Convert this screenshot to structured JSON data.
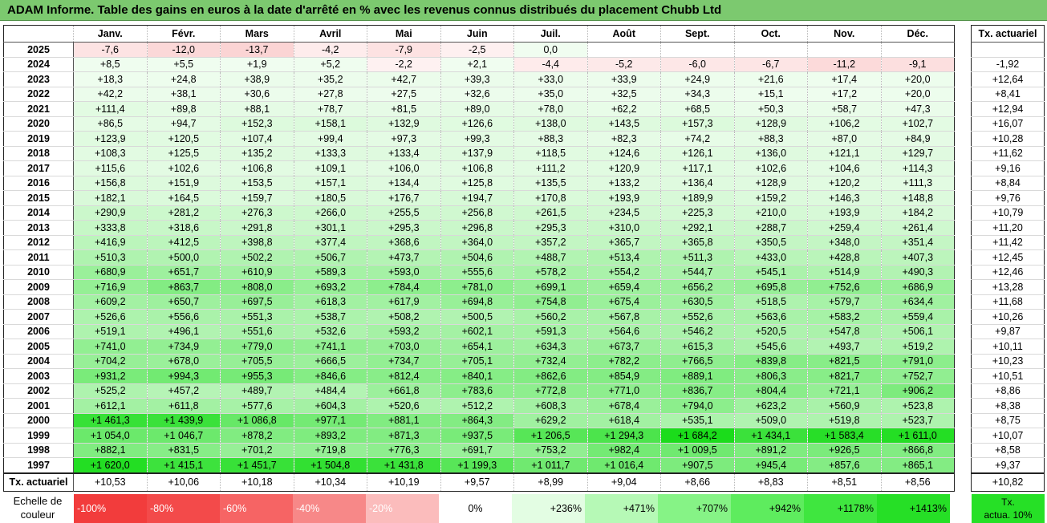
{
  "title": "ADAM Informe. Table des gains en euros à la date d'arrêté en % avec les revenus connus distribués du placement Chubb Ltd",
  "months": [
    "Janv.",
    "Févr.",
    "Mars",
    "Avril",
    "Mai",
    "Juin",
    "Juil.",
    "Août",
    "Sept.",
    "Oct.",
    "Nov.",
    "Déc."
  ],
  "side_header": "Tx. actuariel",
  "rows": [
    {
      "year": "2025",
      "cells": [
        "-7,6",
        "-12,0",
        "-13,7",
        "-4,2",
        "-7,9",
        "-2,5",
        "0,0",
        "",
        "",
        "",
        "",
        ""
      ],
      "rate": ""
    },
    {
      "year": "2024",
      "cells": [
        "+8,5",
        "+5,5",
        "+1,9",
        "+5,2",
        "-2,2",
        "+2,1",
        "-4,4",
        "-5,2",
        "-6,0",
        "-6,7",
        "-11,2",
        "-9,1"
      ],
      "rate": "-1,92"
    },
    {
      "year": "2023",
      "cells": [
        "+18,3",
        "+24,8",
        "+38,9",
        "+35,2",
        "+42,7",
        "+39,3",
        "+33,0",
        "+33,9",
        "+24,9",
        "+21,6",
        "+17,4",
        "+20,0"
      ],
      "rate": "+12,64"
    },
    {
      "year": "2022",
      "cells": [
        "+42,2",
        "+38,1",
        "+30,6",
        "+27,8",
        "+27,5",
        "+32,6",
        "+35,0",
        "+32,5",
        "+34,3",
        "+15,1",
        "+17,2",
        "+20,0"
      ],
      "rate": "+8,41"
    },
    {
      "year": "2021",
      "cells": [
        "+111,4",
        "+89,8",
        "+88,1",
        "+78,7",
        "+81,5",
        "+89,0",
        "+78,0",
        "+62,2",
        "+68,5",
        "+50,3",
        "+58,7",
        "+47,3"
      ],
      "rate": "+12,94"
    },
    {
      "year": "2020",
      "cells": [
        "+86,5",
        "+94,7",
        "+152,3",
        "+158,1",
        "+132,9",
        "+126,6",
        "+138,0",
        "+143,5",
        "+157,3",
        "+128,9",
        "+106,2",
        "+102,7"
      ],
      "rate": "+16,07"
    },
    {
      "year": "2019",
      "cells": [
        "+123,9",
        "+120,5",
        "+107,4",
        "+99,4",
        "+97,3",
        "+99,3",
        "+88,3",
        "+82,3",
        "+74,2",
        "+88,3",
        "+87,0",
        "+84,9"
      ],
      "rate": "+10,28"
    },
    {
      "year": "2018",
      "cells": [
        "+108,3",
        "+125,5",
        "+135,2",
        "+133,3",
        "+133,4",
        "+137,9",
        "+118,5",
        "+124,6",
        "+126,1",
        "+136,0",
        "+121,1",
        "+129,7"
      ],
      "rate": "+11,62"
    },
    {
      "year": "2017",
      "cells": [
        "+115,6",
        "+102,6",
        "+106,8",
        "+109,1",
        "+106,0",
        "+106,8",
        "+111,2",
        "+120,9",
        "+117,1",
        "+102,6",
        "+104,6",
        "+114,3"
      ],
      "rate": "+9,16"
    },
    {
      "year": "2016",
      "cells": [
        "+156,8",
        "+151,9",
        "+153,5",
        "+157,1",
        "+134,4",
        "+125,8",
        "+135,5",
        "+133,2",
        "+136,4",
        "+128,9",
        "+120,2",
        "+111,3"
      ],
      "rate": "+8,84"
    },
    {
      "year": "2015",
      "cells": [
        "+182,1",
        "+164,5",
        "+159,7",
        "+180,5",
        "+176,7",
        "+194,7",
        "+170,8",
        "+193,9",
        "+189,9",
        "+159,2",
        "+146,3",
        "+148,8"
      ],
      "rate": "+9,76"
    },
    {
      "year": "2014",
      "cells": [
        "+290,9",
        "+281,2",
        "+276,3",
        "+266,0",
        "+255,5",
        "+256,8",
        "+261,5",
        "+234,5",
        "+225,3",
        "+210,0",
        "+193,9",
        "+184,2"
      ],
      "rate": "+10,79"
    },
    {
      "year": "2013",
      "cells": [
        "+333,8",
        "+318,6",
        "+291,8",
        "+301,1",
        "+295,3",
        "+296,8",
        "+295,3",
        "+310,0",
        "+292,1",
        "+288,7",
        "+259,4",
        "+261,4"
      ],
      "rate": "+11,20"
    },
    {
      "year": "2012",
      "cells": [
        "+416,9",
        "+412,5",
        "+398,8",
        "+377,4",
        "+368,6",
        "+364,0",
        "+357,2",
        "+365,7",
        "+365,8",
        "+350,5",
        "+348,0",
        "+351,4"
      ],
      "rate": "+11,42"
    },
    {
      "year": "2011",
      "cells": [
        "+510,3",
        "+500,0",
        "+502,2",
        "+506,7",
        "+473,7",
        "+504,6",
        "+488,7",
        "+513,4",
        "+511,3",
        "+433,0",
        "+428,8",
        "+407,3"
      ],
      "rate": "+12,45"
    },
    {
      "year": "2010",
      "cells": [
        "+680,9",
        "+651,7",
        "+610,9",
        "+589,3",
        "+593,0",
        "+555,6",
        "+578,2",
        "+554,2",
        "+544,7",
        "+545,1",
        "+514,9",
        "+490,3"
      ],
      "rate": "+12,46"
    },
    {
      "year": "2009",
      "cells": [
        "+716,9",
        "+863,7",
        "+808,0",
        "+693,2",
        "+784,4",
        "+781,0",
        "+699,1",
        "+659,4",
        "+656,2",
        "+695,8",
        "+752,6",
        "+686,9"
      ],
      "rate": "+13,28"
    },
    {
      "year": "2008",
      "cells": [
        "+609,2",
        "+650,7",
        "+697,5",
        "+618,3",
        "+617,9",
        "+694,8",
        "+754,8",
        "+675,4",
        "+630,5",
        "+518,5",
        "+579,7",
        "+634,4"
      ],
      "rate": "+11,68"
    },
    {
      "year": "2007",
      "cells": [
        "+526,6",
        "+556,6",
        "+551,3",
        "+538,7",
        "+508,2",
        "+500,5",
        "+560,2",
        "+567,8",
        "+552,6",
        "+563,6",
        "+583,2",
        "+559,4"
      ],
      "rate": "+10,26"
    },
    {
      "year": "2006",
      "cells": [
        "+519,1",
        "+496,1",
        "+551,6",
        "+532,6",
        "+593,2",
        "+602,1",
        "+591,3",
        "+564,6",
        "+546,2",
        "+520,5",
        "+547,8",
        "+506,1"
      ],
      "rate": "+9,87"
    },
    {
      "year": "2005",
      "cells": [
        "+741,0",
        "+734,9",
        "+779,0",
        "+741,1",
        "+703,0",
        "+654,1",
        "+634,3",
        "+673,7",
        "+615,3",
        "+545,6",
        "+493,7",
        "+519,2"
      ],
      "rate": "+10,11"
    },
    {
      "year": "2004",
      "cells": [
        "+704,2",
        "+678,0",
        "+705,5",
        "+666,5",
        "+734,7",
        "+705,1",
        "+732,4",
        "+782,2",
        "+766,5",
        "+839,8",
        "+821,5",
        "+791,0"
      ],
      "rate": "+10,23"
    },
    {
      "year": "2003",
      "cells": [
        "+931,2",
        "+994,3",
        "+955,3",
        "+846,6",
        "+812,4",
        "+840,1",
        "+862,6",
        "+854,9",
        "+889,1",
        "+806,3",
        "+821,7",
        "+752,7"
      ],
      "rate": "+10,51"
    },
    {
      "year": "2002",
      "cells": [
        "+525,2",
        "+457,2",
        "+489,7",
        "+484,4",
        "+661,8",
        "+783,6",
        "+772,8",
        "+771,0",
        "+836,7",
        "+804,4",
        "+721,1",
        "+906,2"
      ],
      "rate": "+8,86"
    },
    {
      "year": "2001",
      "cells": [
        "+612,1",
        "+611,8",
        "+577,6",
        "+604,3",
        "+520,6",
        "+512,2",
        "+608,3",
        "+678,4",
        "+794,0",
        "+623,2",
        "+560,9",
        "+523,8"
      ],
      "rate": "+8,38"
    },
    {
      "year": "2000",
      "cells": [
        "+1 461,3",
        "+1 439,9",
        "+1 086,8",
        "+977,1",
        "+881,1",
        "+864,3",
        "+629,2",
        "+618,4",
        "+535,1",
        "+509,0",
        "+519,8",
        "+523,7"
      ],
      "rate": "+8,75"
    },
    {
      "year": "1999",
      "cells": [
        "+1 054,0",
        "+1 046,7",
        "+878,2",
        "+893,2",
        "+871,3",
        "+937,5",
        "+1 206,5",
        "+1 294,3",
        "+1 684,2",
        "+1 434,1",
        "+1 583,4",
        "+1 611,0"
      ],
      "rate": "+10,07"
    },
    {
      "year": "1998",
      "cells": [
        "+882,1",
        "+831,5",
        "+701,2",
        "+719,8",
        "+776,3",
        "+691,7",
        "+753,2",
        "+982,4",
        "+1 009,5",
        "+891,2",
        "+926,5",
        "+866,8"
      ],
      "rate": "+8,58"
    },
    {
      "year": "1997",
      "cells": [
        "+1 620,0",
        "+1 415,1",
        "+1 451,7",
        "+1 504,8",
        "+1 431,8",
        "+1 199,3",
        "+1 011,7",
        "+1 016,4",
        "+907,5",
        "+945,4",
        "+857,6",
        "+865,1"
      ],
      "rate": "+9,37"
    }
  ],
  "footer": {
    "label": "Tx. actuariel",
    "cells": [
      "+10,53",
      "+10,06",
      "+10,18",
      "+10,34",
      "+10,19",
      "+9,57",
      "+8,99",
      "+9,04",
      "+8,66",
      "+8,83",
      "+8,51",
      "+8,56"
    ],
    "rate": "+10,82"
  },
  "scale": {
    "label_line1": "Echelle de",
    "label_line2": "couleur",
    "swatches": [
      {
        "label": "-100%",
        "color": "#f23c3c",
        "kind": "neg"
      },
      {
        "label": "-80%",
        "color": "#f34a4a",
        "kind": "neg"
      },
      {
        "label": "-60%",
        "color": "#f66464",
        "kind": "neg"
      },
      {
        "label": "-40%",
        "color": "#f78888",
        "kind": "neg"
      },
      {
        "label": "-20%",
        "color": "#fbbcbc",
        "kind": "neg"
      },
      {
        "label": "0%",
        "color": "#ffffff",
        "kind": "zero"
      },
      {
        "label": "+236%",
        "color": "#e3fde3",
        "kind": "pos"
      },
      {
        "label": "+471%",
        "color": "#b6f9b6",
        "kind": "pos"
      },
      {
        "label": "+707%",
        "color": "#86f386",
        "kind": "pos"
      },
      {
        "label": "+942%",
        "color": "#5eec5e",
        "kind": "pos"
      },
      {
        "label": "+1178%",
        "color": "#3fe63f",
        "kind": "pos"
      },
      {
        "label": "+1413%",
        "color": "#26df26",
        "kind": "pos"
      }
    ],
    "tx_line1": "Tx.",
    "tx_line2": "actua. 10%"
  }
}
